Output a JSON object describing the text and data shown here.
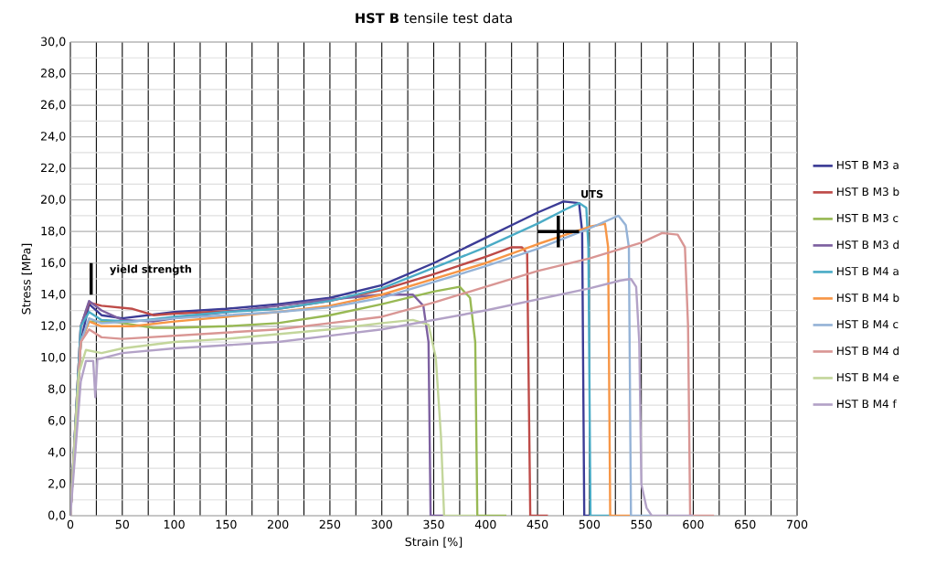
{
  "chart_data": {
    "type": "line",
    "title": "**HST B** tensile test data",
    "xlabel": "Strain [%]",
    "ylabel": "Stress [MPa]",
    "xlim": [
      0,
      700
    ],
    "xticks": [
      0,
      50,
      100,
      150,
      200,
      250,
      300,
      350,
      400,
      450,
      500,
      550,
      600,
      650,
      700
    ],
    "ylim": [
      0,
      30
    ],
    "yticks": [
      {
        "value": 0,
        "label": "0,0"
      },
      {
        "value": 2,
        "label": "2,0"
      },
      {
        "value": 4,
        "label": "4,0"
      },
      {
        "value": 6,
        "label": "6,0"
      },
      {
        "value": 8,
        "label": "8,0"
      },
      {
        "value": 10,
        "label": "10,0"
      },
      {
        "value": 12,
        "label": "12,0"
      },
      {
        "value": 14,
        "label": "14,0"
      },
      {
        "value": 16,
        "label": "16,0"
      },
      {
        "value": 18,
        "label": "18,0"
      },
      {
        "value": 20,
        "label": "20,0"
      },
      {
        "value": 22,
        "label": "22,0"
      },
      {
        "value": 24,
        "label": "24,0"
      },
      {
        "value": 26,
        "label": "26,0"
      },
      {
        "value": 28,
        "label": "28,0"
      },
      {
        "value": 30,
        "label": "30,0"
      }
    ],
    "grid": true,
    "legend": "right",
    "marker": "none",
    "line_style": "solid",
    "annotations": [
      "yield strength",
      "UTS"
    ],
    "series": [
      {
        "name": "HST B M3 a",
        "color": "#3c3c96",
        "x": [
          0,
          10,
          18,
          30,
          50,
          100,
          150,
          200,
          250,
          300,
          350,
          400,
          450,
          475,
          490,
          493,
          495,
          500
        ],
        "values": [
          0,
          11,
          13.4,
          12.7,
          12.5,
          12.9,
          13.1,
          13.4,
          13.8,
          14.6,
          16.0,
          17.6,
          19.2,
          19.9,
          19.8,
          18,
          0,
          0
        ]
      },
      {
        "name": "HST B M3 b",
        "color": "#be4b48",
        "x": [
          0,
          10,
          18,
          30,
          60,
          80,
          100,
          200,
          250,
          300,
          350,
          400,
          425,
          435,
          440,
          443,
          460
        ],
        "values": [
          0,
          12,
          13.5,
          13.3,
          13.1,
          12.7,
          12.8,
          13.1,
          13.6,
          14.3,
          15.3,
          16.4,
          17.0,
          17.0,
          16.6,
          0,
          0
        ]
      },
      {
        "name": "HST B M3 c",
        "color": "#98b954",
        "x": [
          0,
          10,
          18,
          40,
          80,
          100,
          150,
          200,
          250,
          300,
          350,
          375,
          385,
          390,
          392,
          420
        ],
        "values": [
          0,
          11,
          12.3,
          12.3,
          11.9,
          11.9,
          12.0,
          12.2,
          12.7,
          13.4,
          14.2,
          14.5,
          13.8,
          11,
          0,
          0
        ]
      },
      {
        "name": "HST B M3 d",
        "color": "#7d60a0",
        "x": [
          0,
          10,
          18,
          30,
          50,
          80,
          100,
          150,
          200,
          250,
          300,
          330,
          340,
          345,
          347,
          360
        ],
        "values": [
          0,
          12,
          13.6,
          13.0,
          12.4,
          12.3,
          12.5,
          12.9,
          13.3,
          13.7,
          14.0,
          14.0,
          13.3,
          11,
          0,
          0
        ]
      },
      {
        "name": "HST B M4 a",
        "color": "#4bacc6",
        "x": [
          0,
          10,
          18,
          30,
          60,
          100,
          150,
          200,
          250,
          300,
          350,
          400,
          450,
          480,
          490,
          497,
          499,
          501,
          520
        ],
        "values": [
          0,
          12,
          12.9,
          12.4,
          12.3,
          12.6,
          12.9,
          13.1,
          13.6,
          14.4,
          15.7,
          17.0,
          18.5,
          19.5,
          19.8,
          19.5,
          17,
          0,
          0
        ]
      },
      {
        "name": "HST B M4 b",
        "color": "#f79646",
        "x": [
          0,
          10,
          18,
          30,
          60,
          100,
          150,
          200,
          250,
          300,
          350,
          400,
          450,
          500,
          515,
          518,
          520,
          540
        ],
        "values": [
          0,
          11,
          12.3,
          12.0,
          12.0,
          12.3,
          12.6,
          12.9,
          13.3,
          14.0,
          15.0,
          16.0,
          17.2,
          18.3,
          18.5,
          17,
          0,
          0
        ]
      },
      {
        "name": "HST B M4 c",
        "color": "#95b3d7",
        "x": [
          0,
          10,
          18,
          30,
          60,
          100,
          150,
          200,
          250,
          300,
          350,
          400,
          450,
          500,
          528,
          535,
          538,
          540,
          560
        ],
        "values": [
          0,
          11,
          12.5,
          12.2,
          12.3,
          12.5,
          12.7,
          12.9,
          13.2,
          13.8,
          14.8,
          15.8,
          16.9,
          18.2,
          19.0,
          18.4,
          17,
          0,
          0
        ]
      },
      {
        "name": "HST B M4 d",
        "color": "#d99694",
        "x": [
          0,
          10,
          18,
          30,
          50,
          100,
          150,
          200,
          250,
          300,
          350,
          400,
          450,
          500,
          550,
          570,
          585,
          592,
          595,
          597,
          620
        ],
        "values": [
          0,
          11,
          11.8,
          11.3,
          11.2,
          11.4,
          11.6,
          11.8,
          12.2,
          12.6,
          13.5,
          14.5,
          15.5,
          16.3,
          17.3,
          17.9,
          17.8,
          17.0,
          12,
          0,
          0
        ]
      },
      {
        "name": "HST B M4 e",
        "color": "#c3d69b",
        "x": [
          0,
          8,
          15,
          30,
          50,
          100,
          150,
          200,
          250,
          300,
          330,
          345,
          352,
          357,
          360,
          390
        ],
        "values": [
          0,
          9,
          10.5,
          10.3,
          10.6,
          11.0,
          11.2,
          11.5,
          11.8,
          12.2,
          12.4,
          12.1,
          10,
          5,
          0,
          0
        ]
      },
      {
        "name": "HST B M4 f",
        "color": "#b3a2c7",
        "x": [
          0,
          10,
          15,
          22,
          24,
          26,
          50,
          100,
          150,
          200,
          250,
          300,
          350,
          400,
          450,
          500,
          530,
          540,
          545,
          548,
          550,
          555,
          560,
          600
        ],
        "values": [
          0,
          8.5,
          9.8,
          9.8,
          7.5,
          9.9,
          10.3,
          10.6,
          10.8,
          11.0,
          11.4,
          11.8,
          12.4,
          13.0,
          13.7,
          14.4,
          14.9,
          15.0,
          14.5,
          11,
          2,
          0.5,
          0,
          0
        ]
      },
      {
        "color": "#000000",
        "x": [
          20,
          20
        ],
        "values": [
          14,
          16
        ]
      },
      {
        "color": "#000000",
        "x": [
          450,
          490
        ],
        "values": [
          18,
          18
        ]
      },
      {
        "color": "#000000",
        "x": [
          470,
          470
        ],
        "values": [
          17,
          19
        ]
      }
    ]
  }
}
